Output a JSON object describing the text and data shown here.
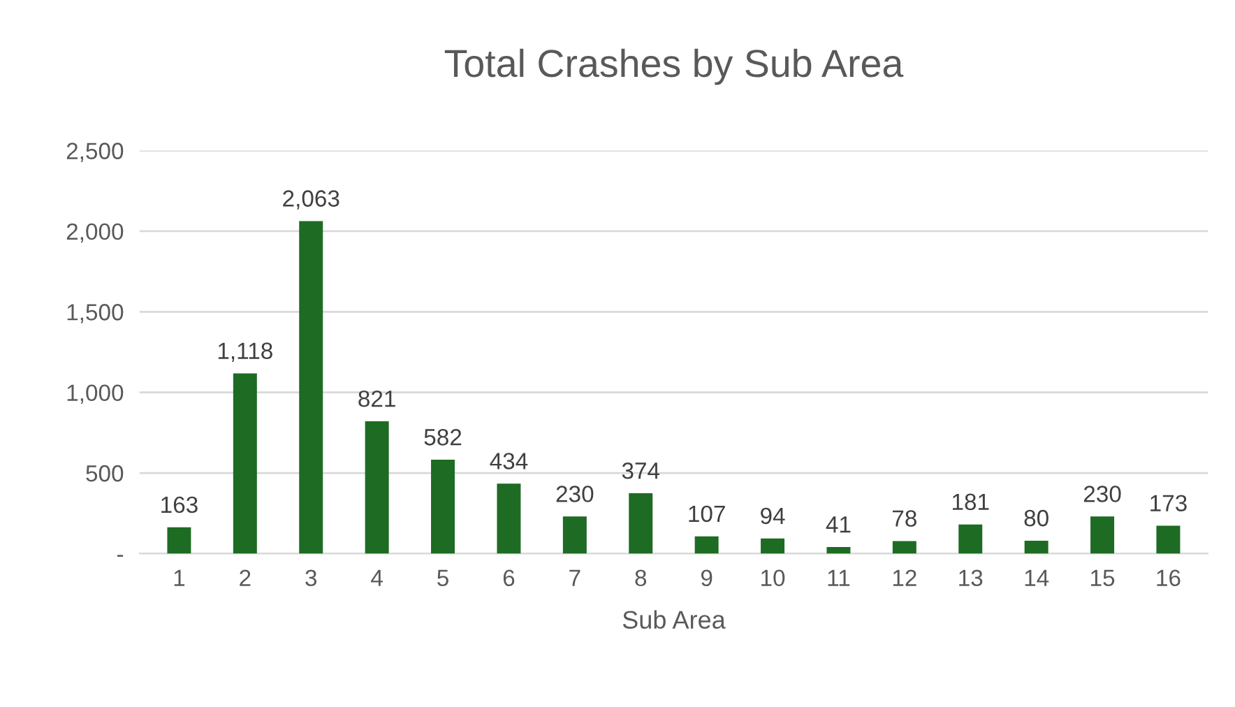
{
  "chart_data": {
    "type": "bar",
    "title": "Total Crashes by Sub Area",
    "xlabel": "Sub Area",
    "categories": [
      "1",
      "2",
      "3",
      "4",
      "5",
      "6",
      "7",
      "8",
      "9",
      "10",
      "11",
      "12",
      "13",
      "14",
      "15",
      "16"
    ],
    "values": [
      163,
      1118,
      2063,
      821,
      582,
      434,
      230,
      374,
      107,
      94,
      41,
      78,
      181,
      80,
      230,
      173
    ],
    "value_labels": [
      "163",
      "1,118",
      "2,063",
      "821",
      "582",
      "434",
      "230",
      "374",
      "107",
      "94",
      "41",
      "78",
      "181",
      "80",
      "230",
      "173"
    ],
    "color": "#1e6b24",
    "ylim": [
      0,
      2500
    ],
    "yticks": [
      {
        "value": 0,
        "label": "-"
      },
      500,
      {
        "value": 1000,
        "label": "1,000"
      },
      {
        "value": 1500,
        "label": "1,500"
      },
      {
        "value": 2000,
        "label": "2,000"
      },
      {
        "value": 2500,
        "label": "2,500"
      }
    ],
    "grid": "y",
    "legend": false
  }
}
